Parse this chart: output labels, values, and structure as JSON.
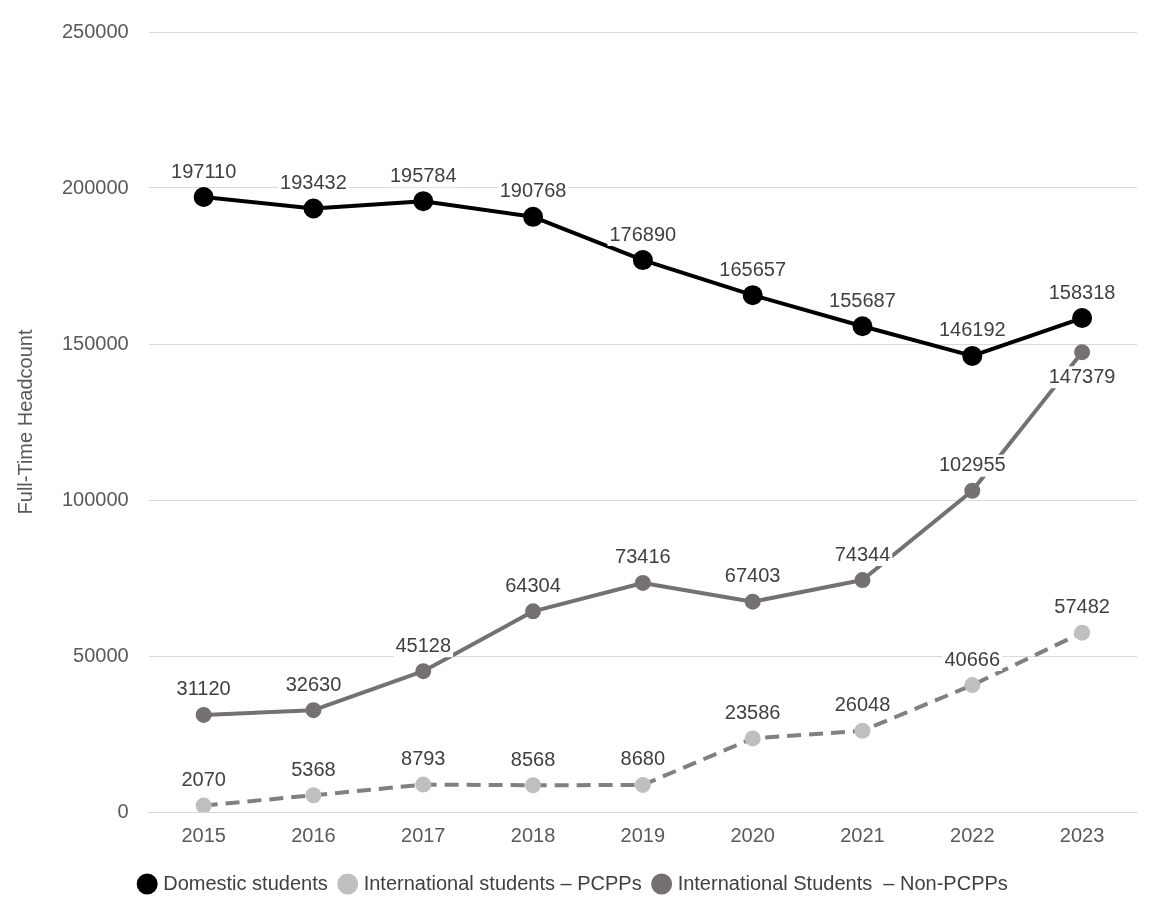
{
  "chart_data": {
    "type": "line",
    "ylabel": "Full-Time Headcount",
    "categories": [
      "2015",
      "2016",
      "2017",
      "2018",
      "2019",
      "2020",
      "2021",
      "2022",
      "2023"
    ],
    "series": [
      {
        "name": "Domestic students",
        "color": "#000000",
        "line_style": "solid",
        "values": [
          197110,
          193432,
          195784,
          190768,
          176890,
          165657,
          155687,
          146192,
          158318
        ]
      },
      {
        "name": "International students – PCPPs",
        "color": "#bfbfbf",
        "line_style": "dashed",
        "values": [
          2070,
          5368,
          8793,
          8568,
          8680,
          23586,
          26048,
          40666,
          57482
        ]
      },
      {
        "name": "International Students  – Non-PCPPs",
        "color": "#767171",
        "line_style": "solid",
        "values": [
          31120,
          32630,
          45128,
          64304,
          73416,
          67403,
          74344,
          102955,
          147379
        ]
      }
    ],
    "ylim": [
      0,
      250000
    ],
    "yticks": [
      0,
      50000,
      100000,
      150000,
      200000,
      250000
    ],
    "grid": "y",
    "legend": "bottom",
    "marker": "circle",
    "data_labels": true
  }
}
